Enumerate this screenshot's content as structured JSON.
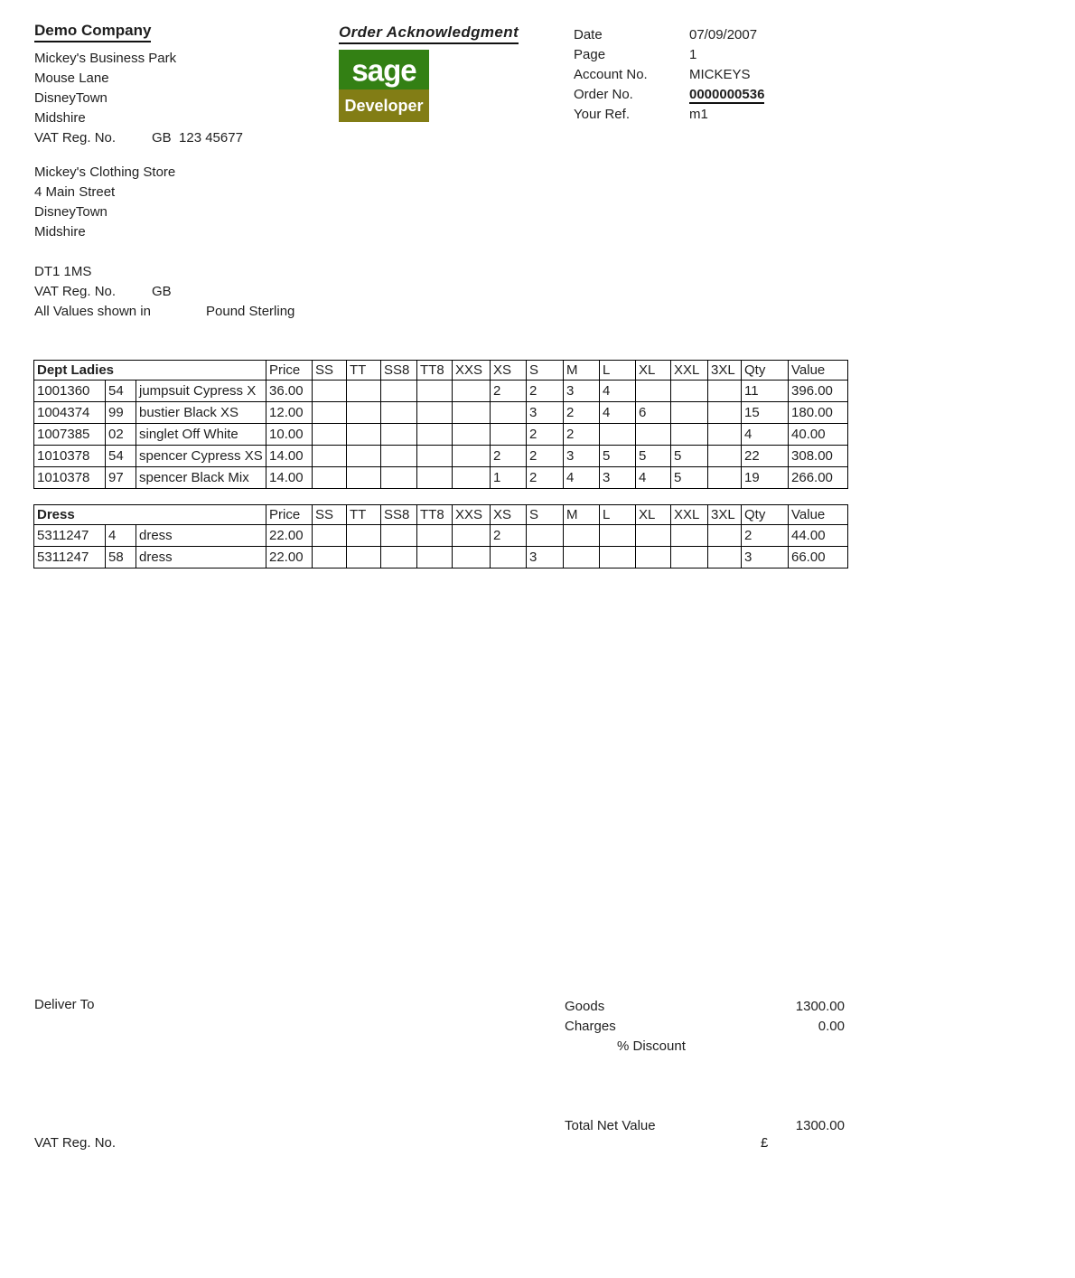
{
  "header": {
    "company": {
      "name": "Demo Company",
      "address": [
        "Mickey's Business Park",
        "Mouse Lane",
        "DisneyTown",
        "Midshire"
      ],
      "vat_label": "VAT Reg. No.",
      "vat_value": "GB  123 45677"
    },
    "doc_title": "Order Acknowledgment",
    "logo": {
      "brand": "sage",
      "sub": "Developer",
      "green": "#338014",
      "olive": "#827d15"
    },
    "info": {
      "rows": [
        {
          "label": "Date",
          "value": "07/09/2007"
        },
        {
          "label": "Page",
          "value": "1"
        },
        {
          "label": "Account No.",
          "value": "MICKEYS"
        },
        {
          "label": "Order No.",
          "value": "0000000536",
          "emphasis": true
        },
        {
          "label": "Your Ref.",
          "value": "m1"
        }
      ]
    }
  },
  "customer": {
    "lines": [
      "Mickey's Clothing Store",
      "4 Main Street",
      "DisneyTown",
      "Midshire"
    ],
    "postcode": "DT1 1MS",
    "vat_label": "VAT Reg. No.",
    "vat_value": "GB",
    "currency_label": "All Values shown in",
    "currency_value": "Pound Sterling"
  },
  "table_headers": {
    "price": "Price",
    "qty": "Qty",
    "value": "Value"
  },
  "size_columns": [
    "SS",
    "TT",
    "SS8",
    "TT8",
    "XXS",
    "XS",
    "S",
    "M",
    "L",
    "XL",
    "XXL",
    "3XL"
  ],
  "tables": [
    {
      "title": "Dept Ladies",
      "rows": [
        {
          "code": "1001360",
          "variant": "54",
          "desc": "jumpsuit Cypress X",
          "price": "36.00",
          "sizes": {
            "XS": "2",
            "S": "2",
            "M": "3",
            "L": "4"
          },
          "qty": "11",
          "value": "396.00"
        },
        {
          "code": "1004374",
          "variant": "99",
          "desc": "bustier Black XS",
          "price": "12.00",
          "sizes": {
            "S": "3",
            "M": "2",
            "L": "4",
            "XL": "6"
          },
          "qty": "15",
          "value": "180.00"
        },
        {
          "code": "1007385",
          "variant": "02",
          "desc": "singlet Off White",
          "price": "10.00",
          "sizes": {
            "S": "2",
            "M": "2"
          },
          "qty": "4",
          "value": "40.00"
        },
        {
          "code": "1010378",
          "variant": "54",
          "desc": "spencer Cypress XS",
          "price": "14.00",
          "sizes": {
            "XS": "2",
            "S": "2",
            "M": "3",
            "L": "5",
            "XL": "5",
            "XXL": "5"
          },
          "qty": "22",
          "value": "308.00"
        },
        {
          "code": "1010378",
          "variant": "97",
          "desc": "spencer Black Mix",
          "price": "14.00",
          "sizes": {
            "XS": "1",
            "S": "2",
            "M": "4",
            "L": "3",
            "XL": "4",
            "XXL": "5"
          },
          "qty": "19",
          "value": "266.00"
        }
      ]
    },
    {
      "title": "Dress",
      "rows": [
        {
          "code": "5311247",
          "variant": "4",
          "desc": "dress",
          "price": "22.00",
          "sizes": {
            "XS": "2"
          },
          "qty": "2",
          "value": "44.00"
        },
        {
          "code": "5311247",
          "variant": "58",
          "desc": "dress",
          "price": "22.00",
          "sizes": {
            "S": "3"
          },
          "qty": "3",
          "value": "66.00"
        }
      ]
    }
  ],
  "footer": {
    "deliver_to_label": "Deliver To",
    "goods_label": "Goods",
    "goods_value": "1300.00",
    "charges_label": "Charges",
    "charges_value": "0.00",
    "discount_label": "% Discount",
    "total_label": "Total Net Value",
    "total_value": "1300.00",
    "currency_symbol": "£",
    "vat_label": "VAT Reg. No."
  }
}
